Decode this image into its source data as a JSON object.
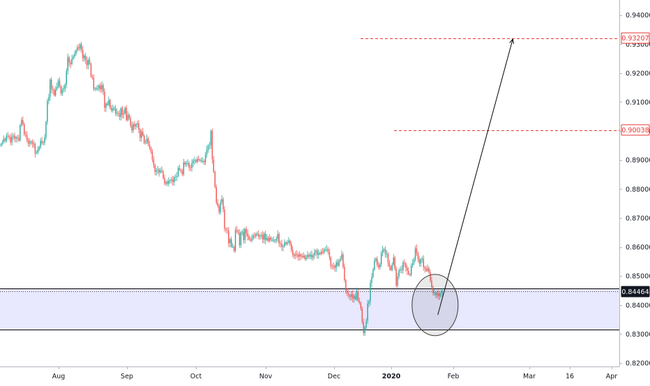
{
  "chart_data": {
    "type": "candlestick",
    "title": "",
    "xlabel": "",
    "ylabel": "",
    "x_ticks": [
      "Aug",
      "Sep",
      "Oct",
      "Nov",
      "Dec",
      "2020",
      "Feb",
      "Mar",
      "16",
      "Apr"
    ],
    "y_ticks": [
      "0.82000",
      "0.83000",
      "0.84000",
      "0.85000",
      "0.86000",
      "0.87000",
      "0.88000",
      "0.89000",
      "0.90000",
      "0.91000",
      "0.92000",
      "0.93000",
      "0.94000"
    ],
    "ylim": [
      0.8188,
      0.9452
    ],
    "grid": false,
    "colors": {
      "up": "#26a69a",
      "down": "#ef5350",
      "zone_fill": "#e8e8ff",
      "target_line": "#e53935",
      "line": "#000000"
    },
    "price_labels": [
      {
        "text": "0.93207",
        "value": 0.93207,
        "style": "target"
      },
      {
        "text": "0.90038",
        "value": 0.90038,
        "style": "target"
      },
      {
        "text": "0.84464",
        "value": 0.84464,
        "style": "current"
      }
    ],
    "horizontal_levels": [
      {
        "name": "zone-top",
        "value": 0.8458
      },
      {
        "name": "zone-bottom",
        "value": 0.8316
      },
      {
        "name": "current-price",
        "value": 0.84464
      },
      {
        "name": "target-1",
        "value": 0.93207
      },
      {
        "name": "target-2",
        "value": 0.90038
      }
    ],
    "closes": [
      0.8955,
      0.8962,
      0.8973,
      0.8967,
      0.8984,
      0.8982,
      0.8979,
      0.8961,
      0.8981,
      0.8984,
      0.8974,
      0.8979,
      0.8975,
      0.8968,
      0.902,
      0.9038,
      0.9024,
      0.899,
      0.8986,
      0.897,
      0.8956,
      0.8964,
      0.8964,
      0.8955,
      0.8956,
      0.8923,
      0.8925,
      0.8935,
      0.8944,
      0.8966,
      0.8959,
      0.896,
      0.8979,
      0.9032,
      0.9104,
      0.9117,
      0.9177,
      0.9144,
      0.9142,
      0.9123,
      0.9145,
      0.9153,
      0.9174,
      0.9155,
      0.913,
      0.9143,
      0.9146,
      0.916,
      0.9207,
      0.9254,
      0.9236,
      0.9231,
      0.9249,
      0.9257,
      0.9266,
      0.9279,
      0.9289,
      0.9285,
      0.9299,
      0.9279,
      0.9251,
      0.926,
      0.9243,
      0.9227,
      0.9246,
      0.9232,
      0.9189,
      0.9183,
      0.9145,
      0.9147,
      0.9147,
      0.9147,
      0.9157,
      0.9143,
      0.9158,
      0.9136,
      0.908,
      0.9095,
      0.909,
      0.9107,
      0.908,
      0.9071,
      0.9078,
      0.908,
      0.9061,
      0.9063,
      0.9061,
      0.9049,
      0.9079,
      0.9057,
      0.9061,
      0.908,
      0.9038,
      0.9056,
      0.9044,
      0.9019,
      0.9002,
      0.9024,
      0.9016,
      0.9023,
      0.9027,
      0.9005,
      0.8977,
      0.8998,
      0.8984,
      0.8959,
      0.8961,
      0.8974,
      0.8955,
      0.8943,
      0.893,
      0.8902,
      0.8883,
      0.8859,
      0.8864,
      0.8867,
      0.8857,
      0.8864,
      0.886,
      0.8838,
      0.8819,
      0.8825,
      0.8818,
      0.8829,
      0.883,
      0.8833,
      0.8824,
      0.884,
      0.8842,
      0.8844,
      0.8873,
      0.8866,
      0.8862,
      0.8851,
      0.8892,
      0.8885,
      0.8889,
      0.889,
      0.8874,
      0.8873,
      0.8889,
      0.8898,
      0.89,
      0.8893,
      0.8904,
      0.89,
      0.89,
      0.8897,
      0.8897,
      0.8892,
      0.8919,
      0.8936,
      0.8949,
      0.8952,
      0.9001,
      0.8902,
      0.8859,
      0.8807,
      0.8752,
      0.8742,
      0.872,
      0.8754,
      0.8765,
      0.873,
      0.8664,
      0.866,
      0.8657,
      0.8613,
      0.8627,
      0.8601,
      0.8601,
      0.8587,
      0.8659,
      0.8655,
      0.865,
      0.8606,
      0.8651,
      0.8653,
      0.8624,
      0.8662,
      0.8648,
      0.8637,
      0.8626,
      0.8622,
      0.8629,
      0.864,
      0.8637,
      0.8646,
      0.8646,
      0.8636,
      0.8639,
      0.8642,
      0.8626,
      0.8646,
      0.8624,
      0.8631,
      0.8621,
      0.8633,
      0.8625,
      0.8625,
      0.8623,
      0.8623,
      0.8628,
      0.8645,
      0.8612,
      0.8611,
      0.86,
      0.8602,
      0.8616,
      0.861,
      0.8616,
      0.8622,
      0.861,
      0.859,
      0.8574,
      0.8569,
      0.8575,
      0.8574,
      0.8566,
      0.8575,
      0.8569,
      0.8565,
      0.857,
      0.8559,
      0.8565,
      0.8573,
      0.8567,
      0.8574,
      0.8564,
      0.8571,
      0.8583,
      0.8588,
      0.8573,
      0.858,
      0.8576,
      0.8584,
      0.8581,
      0.8591,
      0.8591,
      0.8593,
      0.8583,
      0.8564,
      0.8535,
      0.8534,
      0.8535,
      0.8528,
      0.8547,
      0.8536,
      0.8553,
      0.8559,
      0.8574,
      0.8532,
      0.8486,
      0.8448,
      0.844,
      0.8434,
      0.8428,
      0.8438,
      0.8422,
      0.8432,
      0.8419,
      0.8446,
      0.8415,
      0.8408,
      0.8388,
      0.8342,
      0.8303,
      0.8324,
      0.8346,
      0.8405,
      0.8413,
      0.8477,
      0.8496,
      0.8522,
      0.8553,
      0.856,
      0.8538,
      0.853,
      0.8541,
      0.8578,
      0.8592,
      0.8592,
      0.8575,
      0.8576,
      0.8545,
      0.8533,
      0.8521,
      0.8539,
      0.8564,
      0.8525,
      0.8467,
      0.8498,
      0.852,
      0.8523,
      0.852,
      0.8547,
      0.8544,
      0.8529,
      0.8518,
      0.8506,
      0.8504,
      0.8535,
      0.8545,
      0.8558,
      0.8595,
      0.8578,
      0.8558,
      0.8543,
      0.8558,
      0.856,
      0.8531,
      0.8526,
      0.8518,
      0.8527,
      0.8513,
      0.8484,
      0.8461,
      0.8441,
      0.8443,
      0.8434,
      0.8441,
      0.843,
      0.844,
      0.8443,
      0.8446
    ]
  },
  "annotations": [
    {
      "name": "target-arrow",
      "from": {
        "date": "Jan 24",
        "price": 0.8366
      },
      "to": {
        "date": "Feb 24",
        "price": 0.9317
      }
    },
    {
      "name": "highlight-circle",
      "date": "Jan 23",
      "price": 0.84
    }
  ]
}
